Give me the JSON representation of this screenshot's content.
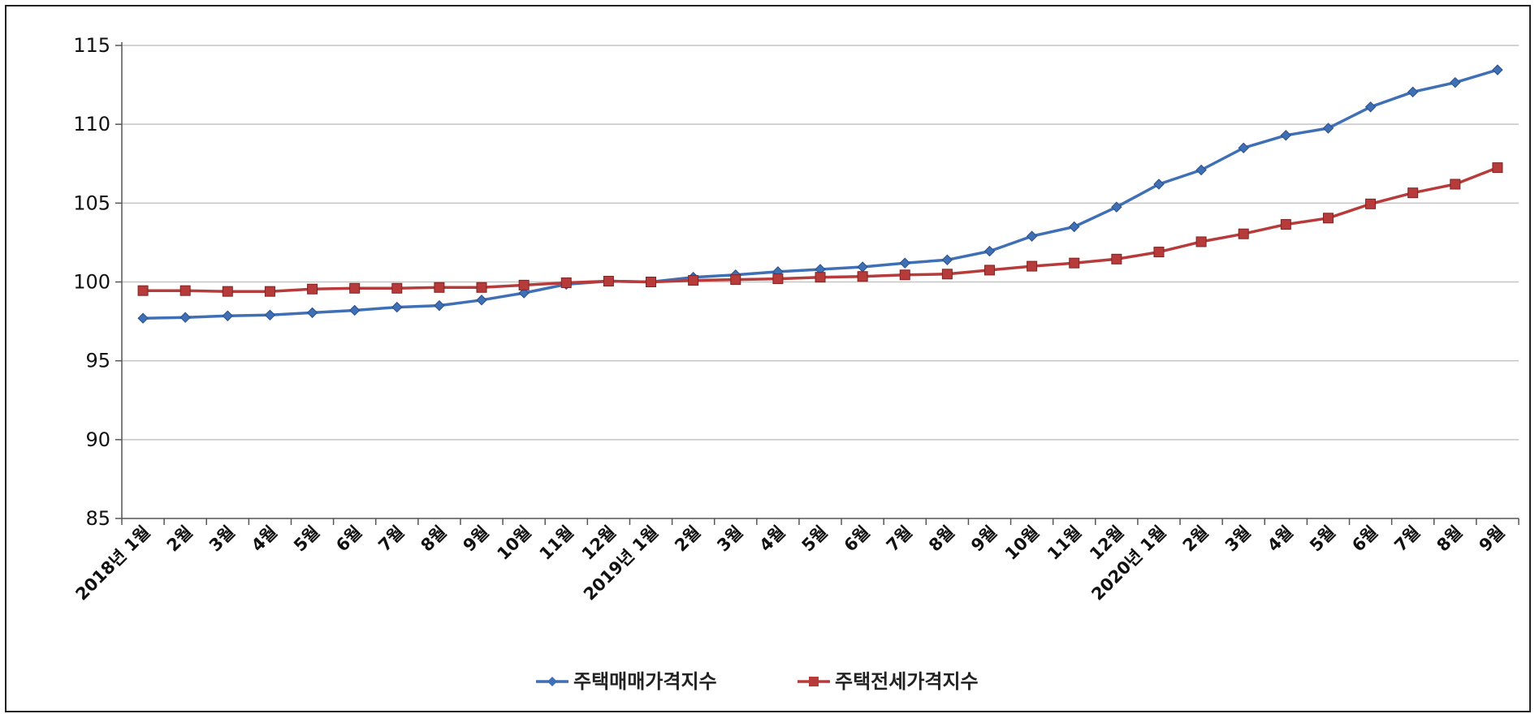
{
  "chart_data": {
    "type": "line",
    "title": "",
    "xlabel": "",
    "ylabel": "",
    "ylim": [
      85,
      115
    ],
    "yticks": [
      85,
      90,
      95,
      100,
      105,
      110,
      115
    ],
    "grid": true,
    "legend_position": "bottom-center",
    "categories": [
      "2018년 1월",
      "2월",
      "3월",
      "4월",
      "5월",
      "6월",
      "7월",
      "8월",
      "9월",
      "10월",
      "11월",
      "12월",
      "2019년 1월",
      "2월",
      "3월",
      "4월",
      "5월",
      "6월",
      "7월",
      "8월",
      "9월",
      "10월",
      "11월",
      "12월",
      "2020년 1월",
      "2월",
      "3월",
      "4월",
      "5월",
      "6월",
      "7월",
      "8월",
      "9월"
    ],
    "series": [
      {
        "name": "주택매매가격지수",
        "color": "#3f6fb5",
        "marker": "diamond",
        "values": [
          97.7,
          97.75,
          97.85,
          97.9,
          98.05,
          98.2,
          98.4,
          98.5,
          98.85,
          99.3,
          99.85,
          100.05,
          100.0,
          100.3,
          100.45,
          100.65,
          100.8,
          100.95,
          101.2,
          101.4,
          101.95,
          102.9,
          103.5,
          104.75,
          106.2,
          107.1,
          108.5,
          109.3,
          109.75,
          111.1,
          112.05,
          112.65,
          113.45
        ]
      },
      {
        "name": "주택전세가격지수",
        "color": "#b73b3a",
        "marker": "square",
        "values": [
          99.45,
          99.45,
          99.4,
          99.4,
          99.55,
          99.6,
          99.6,
          99.65,
          99.65,
          99.8,
          99.95,
          100.05,
          100.0,
          100.1,
          100.15,
          100.2,
          100.3,
          100.35,
          100.45,
          100.5,
          100.75,
          101.0,
          101.2,
          101.45,
          101.9,
          102.55,
          103.05,
          103.65,
          104.05,
          104.95,
          105.65,
          106.2,
          107.25
        ]
      }
    ]
  }
}
